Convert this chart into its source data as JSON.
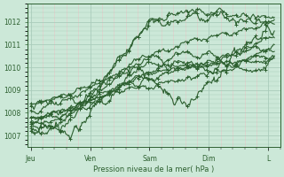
{
  "background_color": "#cce8d8",
  "plot_bg_color": "#cce8d8",
  "grid_major_color": "#aaccbb",
  "grid_minor_color": "#e8c8c8",
  "line_color": "#2d6030",
  "ylim": [
    1006.5,
    1012.8
  ],
  "yticks": [
    1007,
    1008,
    1009,
    1010,
    1011,
    1012
  ],
  "xlabel": "Pression niveau de la mer( hPa )",
  "xlabel_color": "#2d6030",
  "tick_color": "#2d6030",
  "xtick_labels": [
    "Jeu",
    "Ven",
    "Sam",
    "Dim",
    "L"
  ],
  "xtick_positions": [
    0,
    1,
    2,
    3,
    4
  ],
  "xlim": [
    -0.05,
    4.2
  ]
}
